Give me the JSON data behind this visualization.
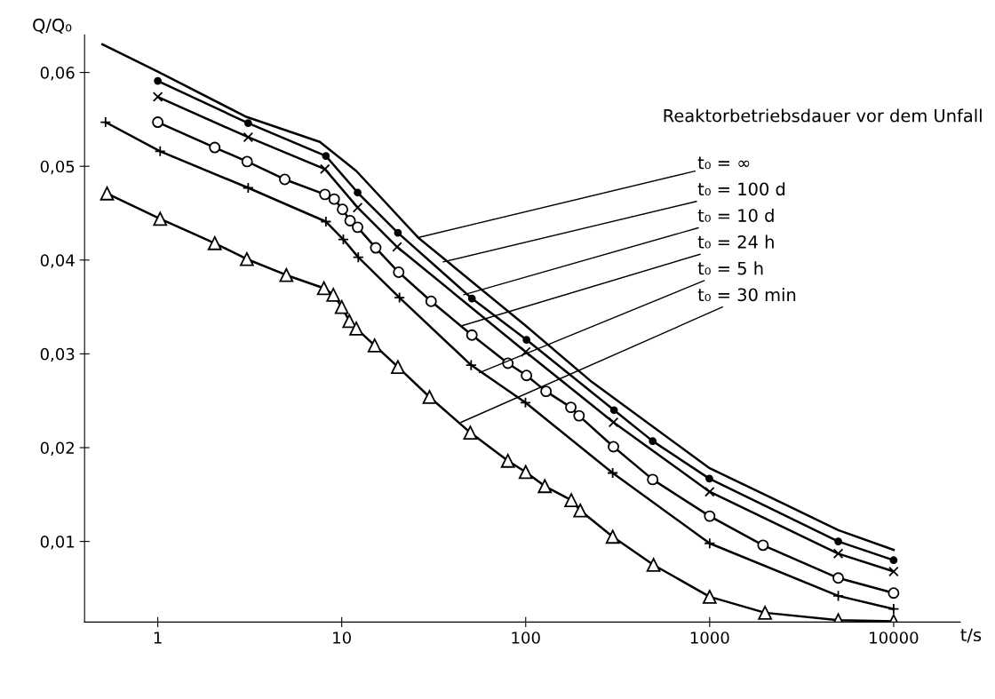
{
  "chart_data": {
    "type": "line",
    "ylabel": "Q/Q₀",
    "xlabel": "t/s",
    "log": "x",
    "xlim": [
      0.4,
      23000
    ],
    "ylim": [
      0.0014,
      0.064
    ],
    "xticks": [
      1,
      10,
      100,
      1000,
      10000
    ],
    "yticks": [
      {
        "value": 0.01,
        "label": "0,01"
      },
      {
        "value": 0.02,
        "label": "0,02"
      },
      {
        "value": 0.03,
        "label": "0,03"
      },
      {
        "value": 0.04,
        "label": "0,04"
      },
      {
        "value": 0.05,
        "label": "0,05"
      },
      {
        "value": 0.06,
        "label": "0,06"
      }
    ],
    "grid": false,
    "legend": false,
    "line_style": "solid",
    "series": [
      {
        "color": "#000000",
        "marker": "none",
        "x": [
          0.5,
          1,
          3,
          7.6,
          12,
          26,
          100,
          229,
          1000,
          2540,
          5000,
          10000
        ],
        "values": [
          0.063,
          0.0601,
          0.0553,
          0.0526,
          0.0495,
          0.0424,
          0.033,
          0.027,
          0.0178,
          0.014,
          0.0112,
          0.0091
        ]
      },
      {
        "color": "#000000",
        "marker": "point",
        "x": [
          1,
          3.1,
          8.2,
          12.2,
          20.2,
          51,
          101,
          302,
          490,
          996,
          5000,
          10000
        ],
        "values": [
          0.0591,
          0.0546,
          0.0511,
          0.0472,
          0.0429,
          0.0359,
          0.0315,
          0.024,
          0.0207,
          0.0167,
          0.01,
          0.008
        ]
      },
      {
        "color": "#000000",
        "marker": "cross",
        "x": [
          1,
          3.1,
          8.1,
          12.2,
          20,
          100,
          300,
          1000,
          5000,
          10000
        ],
        "values": [
          0.0574,
          0.0531,
          0.0497,
          0.0456,
          0.0414,
          0.0302,
          0.0227,
          0.0153,
          0.0087,
          0.0068
        ]
      },
      {
        "color": "#000000",
        "marker": "circle",
        "x": [
          1,
          2.04,
          3.06,
          4.9,
          8.1,
          9.1,
          10.1,
          11.1,
          12.2,
          15.3,
          20.4,
          30.6,
          51,
          80,
          101,
          129,
          176,
          195,
          300,
          490,
          1000,
          1950,
          5000,
          10000
        ],
        "values": [
          0.0547,
          0.052,
          0.0505,
          0.0486,
          0.047,
          0.0465,
          0.0454,
          0.0442,
          0.0435,
          0.0413,
          0.0387,
          0.0356,
          0.032,
          0.029,
          0.0277,
          0.026,
          0.0243,
          0.0234,
          0.0201,
          0.0166,
          0.0127,
          0.0096,
          0.0061,
          0.0045
        ]
      },
      {
        "color": "#000000",
        "marker": "plus",
        "x": [
          0.52,
          1.03,
          3.1,
          8.2,
          10.2,
          12.3,
          20.6,
          50.5,
          99.7,
          297,
          1000,
          5000,
          10000
        ],
        "values": [
          0.0547,
          0.0516,
          0.0477,
          0.0441,
          0.0422,
          0.0403,
          0.036,
          0.0288,
          0.0248,
          0.0173,
          0.0098,
          0.0042,
          0.0028
        ]
      },
      {
        "color": "#000000",
        "marker": "triangle",
        "x": [
          0.53,
          1.03,
          2.04,
          3.05,
          5,
          8,
          9,
          10,
          11,
          12,
          15.1,
          20.2,
          30,
          50,
          80,
          100,
          127,
          177,
          198,
          297,
          495,
          1000,
          2000,
          5000,
          10000
        ],
        "values": [
          0.0471,
          0.0444,
          0.0418,
          0.0401,
          0.0384,
          0.037,
          0.0363,
          0.035,
          0.0335,
          0.0327,
          0.0309,
          0.0286,
          0.0254,
          0.0216,
          0.0186,
          0.0174,
          0.0159,
          0.0144,
          0.0133,
          0.0105,
          0.0075,
          0.0041,
          0.0024,
          0.0016,
          0.0015
        ]
      }
    ],
    "annotations": [
      "Reaktorbetriebsdauer vor dem Unfall",
      {
        "text": "t₀ = ∞",
        "x": 26,
        "y": 0.0424
      },
      {
        "text": "t₀ = 100 d",
        "x": 35.6,
        "y": 0.0398
      },
      {
        "text": "t₀ = 10 d",
        "x": 46,
        "y": 0.0363
      },
      {
        "text": "t₀ = 24 h",
        "x": 45,
        "y": 0.033
      },
      {
        "text": "t₀ = 5 h",
        "x": 56,
        "y": 0.028
      },
      {
        "text": "t₀ = 30 min",
        "x": 44.5,
        "y": 0.0227
      }
    ]
  }
}
